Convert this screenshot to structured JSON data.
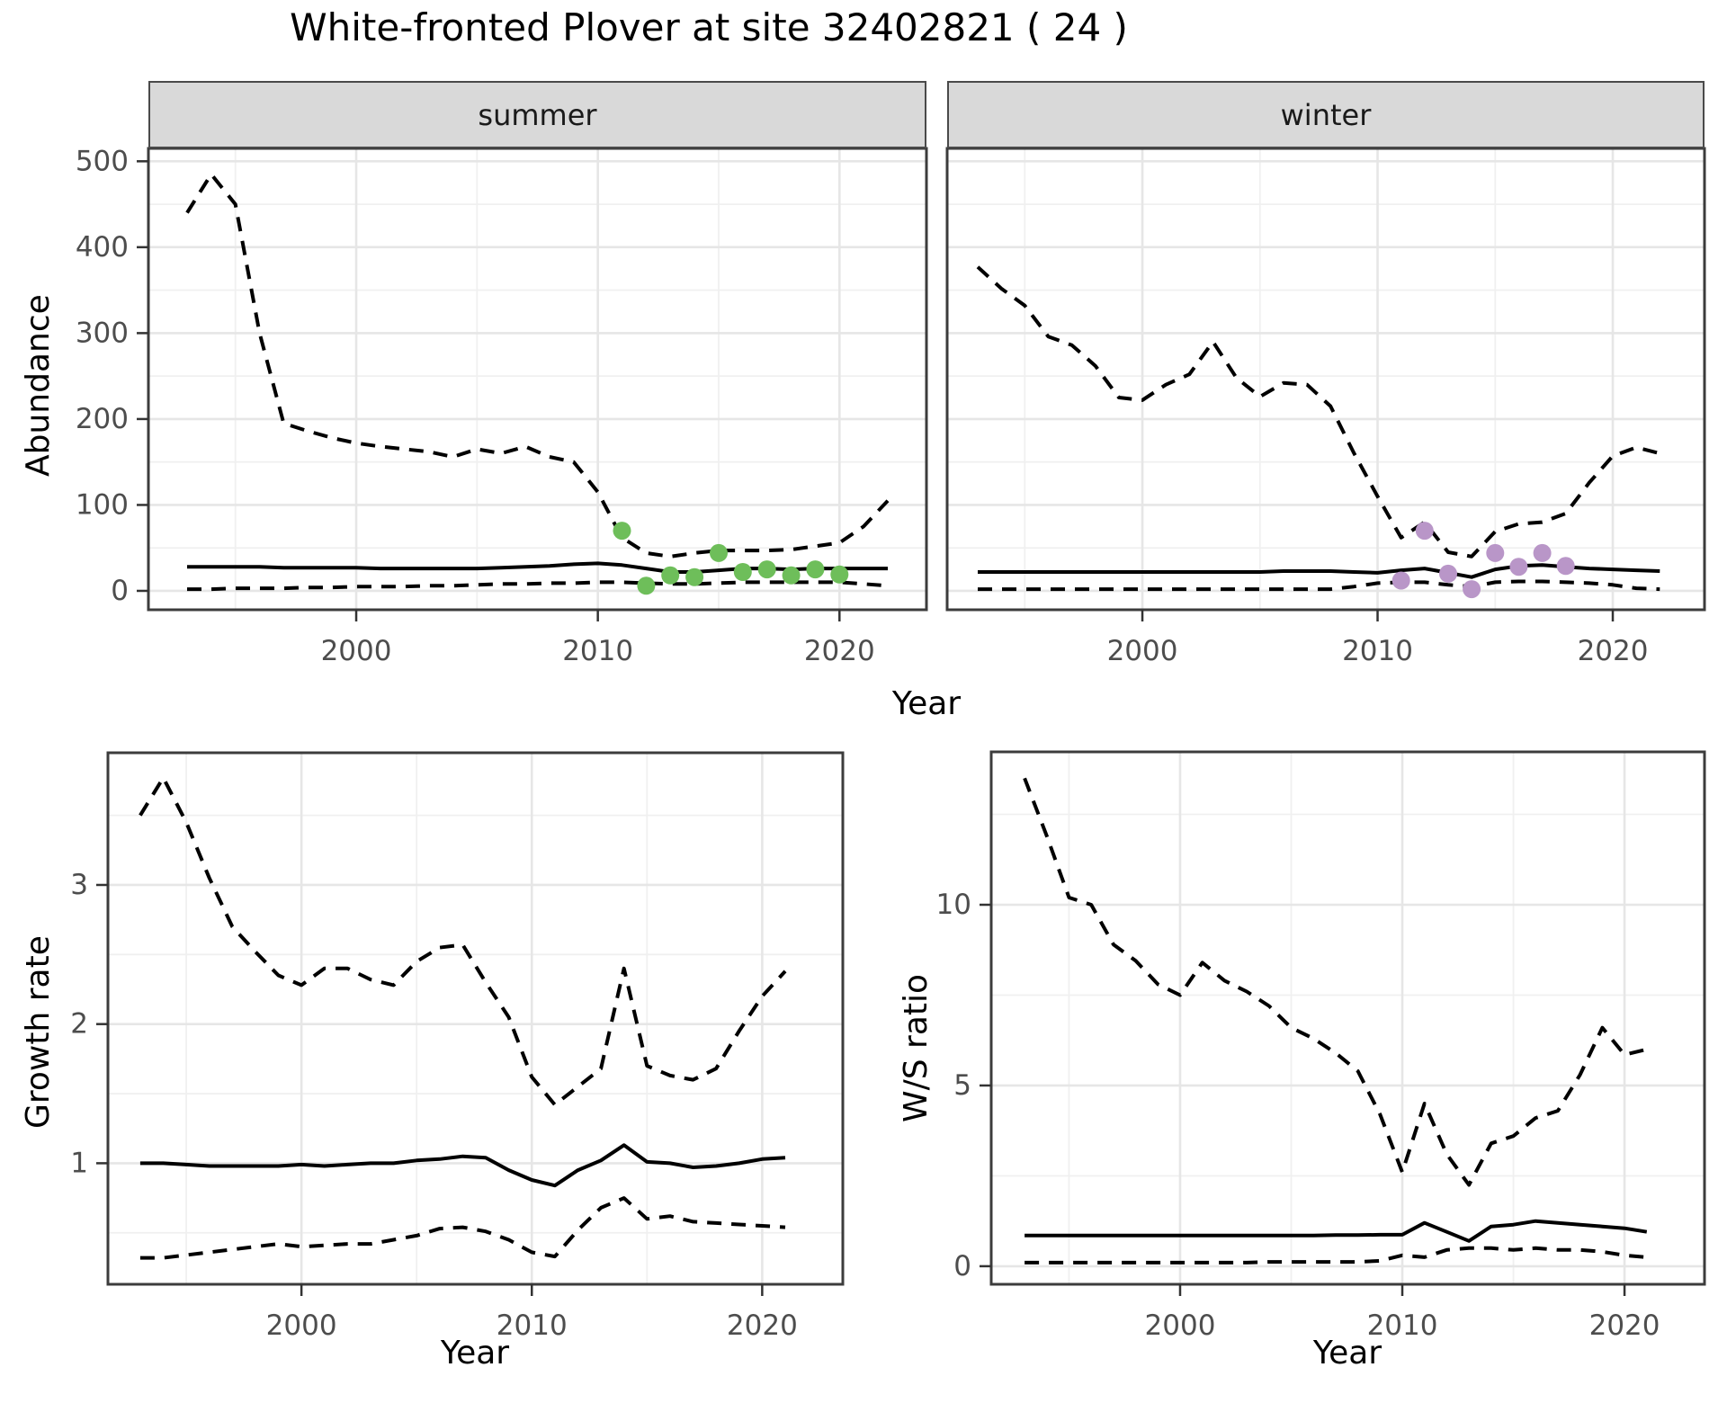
{
  "title": "White-fronted Plover at site 32402821 ( 24 )",
  "facets": {
    "summer": "summer",
    "winter": "winter"
  },
  "axis_titles": {
    "abundance": "Abundance",
    "year_top": "Year",
    "growth": "Growth rate",
    "year_bottom_left": "Year",
    "ws": "W/S ratio",
    "year_bottom_right": "Year"
  },
  "colors": {
    "observed_summer": "#6ebe5a",
    "observed_winter": "#b996c8",
    "line": "#000000",
    "axis_text": "#4d4d4d",
    "tick_mark": "#333333",
    "strip_bg": "#d9d9d9",
    "panel_border": "#3c3c3c",
    "grid_major": "#e6e6e6",
    "grid_minor": "#f0f0f0"
  },
  "chart_data": [
    {
      "id": "abundance-summer",
      "type": "line",
      "facet": "summer",
      "xlabel": "Year",
      "ylabel": "Abundance",
      "xlim": [
        1991.4,
        2023.6
      ],
      "ylim": [
        -22,
        515
      ],
      "x_major": [
        2000,
        2010,
        2020
      ],
      "x_minor": [
        1995,
        2005,
        2015
      ],
      "y_major": [
        0,
        100,
        200,
        300,
        400,
        500
      ],
      "y_minor": [
        50,
        150,
        250,
        350,
        450
      ],
      "grid": true,
      "legend": "none",
      "x": [
        1993,
        1994,
        1995,
        1996,
        1997,
        1998,
        1999,
        2000,
        2001,
        2002,
        2003,
        2004,
        2005,
        2006,
        2007,
        2008,
        2009,
        2010,
        2011,
        2012,
        2013,
        2014,
        2015,
        2016,
        2017,
        2018,
        2019,
        2020,
        2021,
        2022
      ],
      "series": [
        {
          "name": "upper-95ci",
          "style": "dashed",
          "values": [
            440,
            485,
            450,
            300,
            195,
            186,
            178,
            172,
            168,
            165,
            162,
            156,
            165,
            160,
            168,
            156,
            150,
            115,
            62,
            44,
            40,
            44,
            47,
            47,
            47,
            48,
            52,
            56,
            75,
            105
          ]
        },
        {
          "name": "median",
          "style": "solid",
          "values": [
            28,
            28,
            28,
            28,
            27,
            27,
            27,
            27,
            26,
            26,
            26,
            26,
            26,
            27,
            28,
            29,
            31,
            32,
            30,
            26,
            22,
            22,
            24,
            26,
            26,
            25,
            26,
            26,
            26,
            26
          ]
        },
        {
          "name": "lower-95ci",
          "style": "dashed",
          "values": [
            2,
            2,
            3,
            3,
            3,
            4,
            4,
            5,
            5,
            5,
            6,
            6,
            7,
            8,
            8,
            9,
            9,
            10,
            10,
            9,
            8,
            8,
            9,
            10,
            10,
            10,
            10,
            10,
            8,
            6
          ]
        }
      ],
      "points": {
        "name": "observed-counts-summer",
        "color": "#6ebe5a",
        "x": [
          2011,
          2012,
          2013,
          2014,
          2015,
          2016,
          2017,
          2018,
          2019,
          2020
        ],
        "y": [
          70,
          6,
          18,
          16,
          44,
          22,
          25,
          18,
          25,
          19
        ]
      }
    },
    {
      "id": "abundance-winter",
      "type": "line",
      "facet": "winter",
      "xlabel": "Year",
      "ylabel": "Abundance",
      "xlim": [
        1991.7,
        2023.9
      ],
      "ylim": [
        -22,
        515
      ],
      "x_major": [
        2000,
        2010,
        2020
      ],
      "x_minor": [
        1995,
        2005,
        2015
      ],
      "y_major": [
        0,
        100,
        200,
        300,
        400,
        500
      ],
      "y_minor": [
        50,
        150,
        250,
        350,
        450
      ],
      "grid": true,
      "legend": "none",
      "x": [
        1993,
        1994,
        1995,
        1996,
        1997,
        1998,
        1999,
        2000,
        2001,
        2002,
        2003,
        2004,
        2005,
        2006,
        2007,
        2008,
        2009,
        2010,
        2011,
        2012,
        2013,
        2014,
        2015,
        2016,
        2017,
        2018,
        2019,
        2020,
        2021,
        2022
      ],
      "series": [
        {
          "name": "upper-95ci",
          "style": "dashed",
          "values": [
            377,
            352,
            332,
            296,
            286,
            262,
            225,
            222,
            240,
            252,
            290,
            248,
            226,
            242,
            240,
            215,
            160,
            110,
            62,
            80,
            45,
            40,
            69,
            78,
            80,
            90,
            126,
            157,
            167,
            160
          ]
        },
        {
          "name": "median",
          "style": "solid",
          "values": [
            22,
            22,
            22,
            22,
            22,
            22,
            22,
            22,
            22,
            22,
            22,
            22,
            22,
            23,
            23,
            23,
            22,
            21,
            24,
            26,
            21,
            16,
            25,
            29,
            30,
            28,
            26,
            25,
            24,
            23
          ]
        },
        {
          "name": "lower-95ci",
          "style": "dashed",
          "values": [
            2,
            2,
            2,
            2,
            2,
            2,
            2,
            2,
            2,
            2,
            2,
            2,
            2,
            2,
            2,
            2,
            5,
            9,
            10,
            10,
            7,
            5,
            10,
            11,
            11,
            10,
            9,
            7,
            3,
            2
          ]
        }
      ],
      "points": {
        "name": "observed-counts-winter",
        "color": "#b996c8",
        "x": [
          2011,
          2012,
          2013,
          2014,
          2015,
          2016,
          2017,
          2018
        ],
        "y": [
          12,
          70,
          20,
          2,
          44,
          28,
          44,
          29
        ]
      }
    },
    {
      "id": "growth-rate",
      "type": "line",
      "facet": "",
      "xlabel": "Year",
      "ylabel": "Growth rate",
      "xlim": [
        1991.6,
        2023.5
      ],
      "ylim": [
        0.13,
        3.95
      ],
      "x_major": [
        2000,
        2010,
        2020
      ],
      "x_minor": [
        1995,
        2005,
        2015
      ],
      "y_major": [
        1,
        2,
        3
      ],
      "y_minor": [
        0.5,
        1.5,
        2.5,
        3.5
      ],
      "grid": true,
      "legend": "none",
      "x": [
        1993,
        1994,
        1995,
        1996,
        1997,
        1998,
        1999,
        2000,
        2001,
        2002,
        2003,
        2004,
        2005,
        2006,
        2007,
        2008,
        2009,
        2010,
        2011,
        2012,
        2013,
        2014,
        2015,
        2016,
        2017,
        2018,
        2019,
        2020,
        2021
      ],
      "series": [
        {
          "name": "upper-95ci",
          "style": "dashed",
          "values": [
            3.5,
            3.77,
            3.45,
            3.05,
            2.7,
            2.52,
            2.35,
            2.28,
            2.4,
            2.4,
            2.32,
            2.28,
            2.45,
            2.55,
            2.57,
            2.3,
            2.05,
            1.62,
            1.42,
            1.55,
            1.68,
            2.4,
            1.7,
            1.63,
            1.6,
            1.68,
            1.95,
            2.2,
            2.38
          ]
        },
        {
          "name": "median",
          "style": "solid",
          "values": [
            1,
            1,
            0.99,
            0.98,
            0.98,
            0.98,
            0.98,
            0.99,
            0.98,
            0.99,
            1,
            1,
            1.02,
            1.03,
            1.05,
            1.04,
            0.95,
            0.88,
            0.84,
            0.95,
            1.02,
            1.13,
            1.01,
            1,
            0.97,
            0.98,
            1,
            1.03,
            1.04
          ]
        },
        {
          "name": "lower-95ci",
          "style": "dashed",
          "values": [
            0.32,
            0.32,
            0.34,
            0.36,
            0.38,
            0.4,
            0.42,
            0.4,
            0.41,
            0.42,
            0.42,
            0.45,
            0.48,
            0.53,
            0.54,
            0.51,
            0.45,
            0.36,
            0.33,
            0.52,
            0.68,
            0.75,
            0.6,
            0.62,
            0.58,
            0.57,
            0.56,
            0.55,
            0.54
          ]
        }
      ],
      "points": null
    },
    {
      "id": "ws-ratio",
      "type": "line",
      "facet": "",
      "xlabel": "Year",
      "ylabel": "W/S ratio",
      "xlim": [
        1991.5,
        2023.6
      ],
      "ylim": [
        -0.5,
        14.23
      ],
      "x_major": [
        2000,
        2010,
        2020
      ],
      "x_minor": [
        1995,
        2005,
        2015
      ],
      "y_major": [
        0,
        5,
        10
      ],
      "y_minor": [
        2.5,
        7.5,
        12.5
      ],
      "grid": true,
      "legend": "none",
      "x": [
        1993,
        1994,
        1995,
        1996,
        1997,
        1998,
        1999,
        2000,
        2001,
        2002,
        2003,
        2004,
        2005,
        2006,
        2007,
        2008,
        2009,
        2010,
        2011,
        2012,
        2013,
        2014,
        2015,
        2016,
        2017,
        2018,
        2019,
        2020,
        2021
      ],
      "series": [
        {
          "name": "upper-95ci",
          "style": "dashed",
          "values": [
            13.5,
            11.9,
            10.2,
            10.0,
            8.9,
            8.45,
            7.8,
            7.5,
            8.4,
            7.9,
            7.6,
            7.2,
            6.6,
            6.3,
            5.9,
            5.4,
            4.2,
            2.6,
            4.5,
            3.1,
            2.25,
            3.4,
            3.6,
            4.1,
            4.3,
            5.3,
            6.6,
            5.85,
            6.0
          ]
        },
        {
          "name": "median",
          "style": "solid",
          "values": [
            0.85,
            0.85,
            0.85,
            0.85,
            0.85,
            0.85,
            0.85,
            0.85,
            0.85,
            0.85,
            0.85,
            0.85,
            0.85,
            0.85,
            0.86,
            0.86,
            0.87,
            0.87,
            1.2,
            0.95,
            0.7,
            1.1,
            1.15,
            1.25,
            1.2,
            1.15,
            1.1,
            1.05,
            0.95
          ]
        },
        {
          "name": "lower-95ci",
          "style": "dashed",
          "values": [
            0.1,
            0.1,
            0.1,
            0.1,
            0.1,
            0.1,
            0.1,
            0.1,
            0.1,
            0.1,
            0.1,
            0.12,
            0.12,
            0.12,
            0.12,
            0.12,
            0.15,
            0.3,
            0.25,
            0.45,
            0.5,
            0.5,
            0.45,
            0.5,
            0.45,
            0.45,
            0.4,
            0.3,
            0.25
          ]
        }
      ],
      "points": null
    }
  ]
}
